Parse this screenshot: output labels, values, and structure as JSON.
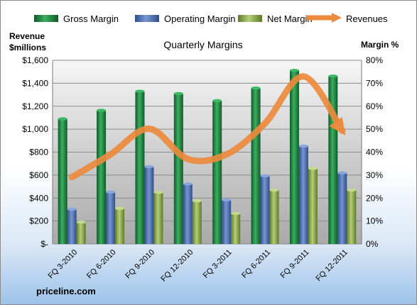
{
  "chart_data": {
    "type": "bar",
    "title": "Quarterly Margins",
    "left_axis_title": [
      "Revenue",
      "$millions"
    ],
    "right_axis_title": "Margin %",
    "source": "priceline.com",
    "categories": [
      "FQ 3-2010",
      "FQ 6-2010",
      "FQ 9-2010",
      "FQ 12-2010",
      "FQ 3-2011",
      "FQ 6-2011",
      "FQ 9-2011",
      "FQ 12-2011"
    ],
    "series": [
      {
        "name": "Gross Margin",
        "axis": "right",
        "type": "bar",
        "color": "#1e7b3e",
        "values": [
          54.5,
          58.2,
          66.5,
          65.5,
          62.4,
          67.9,
          75.6,
          73.1
        ]
      },
      {
        "name": "Operating Margin",
        "axis": "right",
        "type": "bar",
        "color": "#4a6fb0",
        "values": [
          15.2,
          22.6,
          33.7,
          26.2,
          19.2,
          29.7,
          42.6,
          31
        ]
      },
      {
        "name": "Net Margin",
        "axis": "right",
        "type": "bar",
        "color": "#8fae4e",
        "values": [
          9.5,
          15.5,
          22.5,
          18.8,
          13.3,
          23.5,
          32.9,
          23.5
        ]
      },
      {
        "name": "Revenues",
        "axis": "left",
        "type": "line",
        "color": "#ec8a3d",
        "values": [
          582,
          780,
          1004,
          740,
          780,
          1051,
          1459,
          986
        ]
      }
    ],
    "left_axis": {
      "min": 0,
      "max": 1600,
      "step": 200,
      "tick_labels": [
        "$-",
        "$200",
        "$400",
        "$600",
        "$800",
        "$1,000",
        "$1,200",
        "$1,400",
        "$1,600"
      ]
    },
    "right_axis": {
      "min": 0,
      "max": 80,
      "step": 10,
      "tick_labels": [
        "0%",
        "10%",
        "20%",
        "30%",
        "40%",
        "50%",
        "60%",
        "70%",
        "80%"
      ]
    },
    "grid": true,
    "legend_position": "top"
  }
}
